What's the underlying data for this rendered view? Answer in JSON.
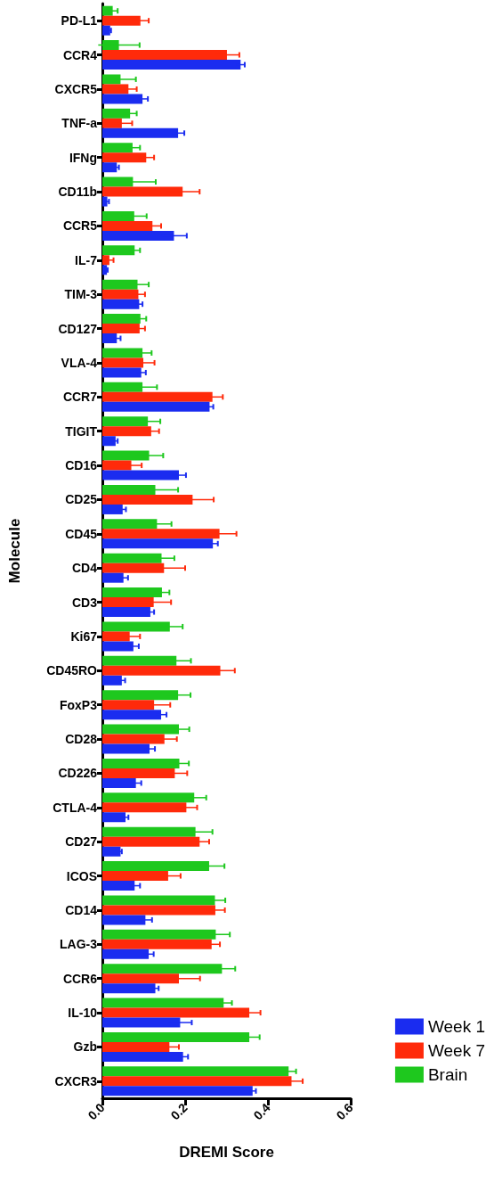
{
  "chart_data": {
    "type": "bar",
    "orientation": "horizontal",
    "xlabel": "DREMI Score",
    "ylabel": "Molecule",
    "legend": "right",
    "xlim": [
      0,
      0.6
    ],
    "xticks": [
      {
        "value": 0,
        "label": "0.0"
      },
      0.2,
      0.4,
      0.6
    ],
    "categories": [
      "PD-L1",
      "CCR4",
      "CXCR5",
      "TNF-a",
      "IFNg",
      "CD11b",
      "CCR5",
      "IL-7",
      "TIM-3",
      "CD127",
      "VLA-4",
      "CCR7",
      "TIGIT",
      "CD16",
      "CD25",
      "CD45",
      "CD4",
      "CD3",
      "Ki67",
      "CD45RO",
      "FoxP3",
      "CD28",
      "CD226",
      "CTLA-4",
      "CD27",
      "ICOS",
      "CD14",
      "LAG-3",
      "CCR6",
      "IL-10",
      "Gzb",
      "CXCR3"
    ],
    "series": [
      {
        "name": "Week 1",
        "color": "#1a2cf0",
        "values": [
          0.019,
          0.334,
          0.097,
          0.183,
          0.035,
          0.012,
          0.173,
          0.011,
          0.089,
          0.035,
          0.094,
          0.259,
          0.032,
          0.185,
          0.049,
          0.267,
          0.051,
          0.116,
          0.075,
          0.047,
          0.142,
          0.114,
          0.081,
          0.056,
          0.044,
          0.078,
          0.104,
          0.112,
          0.128,
          0.188,
          0.195,
          0.363
        ],
        "errors": [
          0.002,
          0.01,
          0.013,
          0.015,
          0.005,
          0.004,
          0.031,
          0.002,
          0.008,
          0.009,
          0.011,
          0.009,
          0.005,
          0.017,
          0.008,
          0.012,
          0.011,
          0.009,
          0.013,
          0.008,
          0.013,
          0.013,
          0.013,
          0.007,
          0.003,
          0.013,
          0.016,
          0.012,
          0.008,
          0.028,
          0.012,
          0.008
        ]
      },
      {
        "name": "Week 7",
        "color": "#ff2a0a",
        "values": [
          0.092,
          0.301,
          0.063,
          0.047,
          0.106,
          0.194,
          0.121,
          0.017,
          0.087,
          0.09,
          0.099,
          0.266,
          0.118,
          0.07,
          0.218,
          0.283,
          0.149,
          0.124,
          0.066,
          0.285,
          0.125,
          0.15,
          0.175,
          0.203,
          0.235,
          0.159,
          0.273,
          0.264,
          0.185,
          0.355,
          0.162,
          0.457
        ],
        "errors": [
          0.02,
          0.03,
          0.02,
          0.025,
          0.019,
          0.041,
          0.021,
          0.01,
          0.016,
          0.013,
          0.027,
          0.025,
          0.019,
          0.025,
          0.051,
          0.041,
          0.051,
          0.042,
          0.025,
          0.035,
          0.039,
          0.03,
          0.03,
          0.026,
          0.023,
          0.03,
          0.023,
          0.02,
          0.051,
          0.027,
          0.023,
          0.027
        ]
      },
      {
        "name": "Brain",
        "color": "#1ec81e",
        "values": [
          0.025,
          0.04,
          0.044,
          0.067,
          0.073,
          0.074,
          0.077,
          0.078,
          0.085,
          0.092,
          0.097,
          0.097,
          0.11,
          0.113,
          0.128,
          0.132,
          0.143,
          0.144,
          0.163,
          0.179,
          0.183,
          0.185,
          0.186,
          0.222,
          0.225,
          0.258,
          0.272,
          0.274,
          0.289,
          0.293,
          0.355,
          0.45
        ],
        "errors": [
          0.012,
          0.05,
          0.037,
          0.016,
          0.018,
          0.055,
          0.03,
          0.013,
          0.027,
          0.014,
          0.022,
          0.035,
          0.03,
          0.034,
          0.055,
          0.035,
          0.031,
          0.018,
          0.031,
          0.035,
          0.03,
          0.025,
          0.023,
          0.029,
          0.041,
          0.037,
          0.025,
          0.034,
          0.032,
          0.02,
          0.025,
          0.018
        ]
      }
    ]
  }
}
